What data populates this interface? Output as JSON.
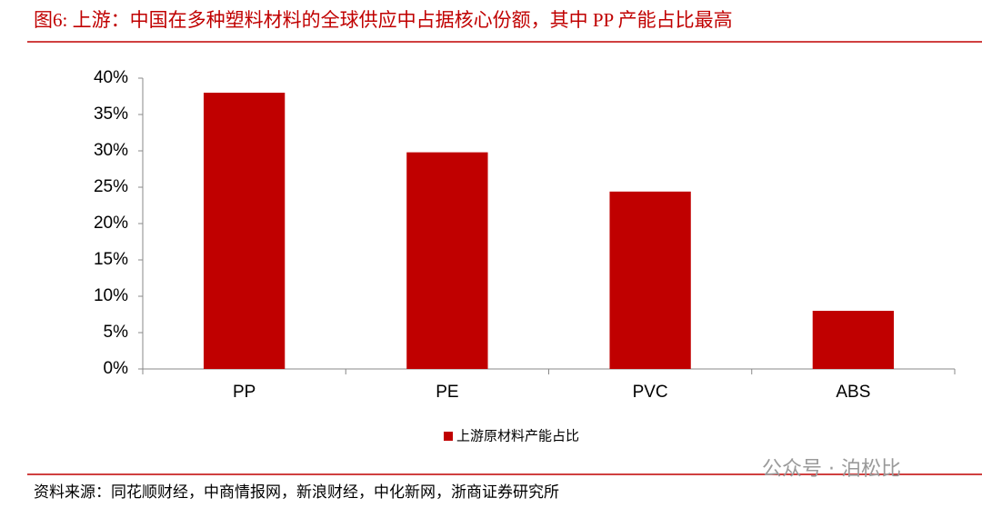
{
  "chart_data": {
    "type": "bar",
    "title": "图6:  上游：中国在多种塑料材料的全球供应中占据核心份额，其中 PP 产能占比最高",
    "categories": [
      "PP",
      "PE",
      "PVC",
      "ABS"
    ],
    "series": [
      {
        "name": "上游原材料产能占比",
        "color": "#c00000",
        "values": [
          38,
          29.8,
          24.4,
          8
        ]
      }
    ],
    "ylim": [
      0,
      40
    ],
    "yticks": [
      {
        "value": 0,
        "label": "0%"
      },
      {
        "value": 5,
        "label": "5%"
      },
      {
        "value": 10,
        "label": "10%"
      },
      {
        "value": 15,
        "label": "15%"
      },
      {
        "value": 20,
        "label": "20%"
      },
      {
        "value": 25,
        "label": "25%"
      },
      {
        "value": 30,
        "label": "30%"
      },
      {
        "value": 35,
        "label": "35%"
      },
      {
        "value": 40,
        "label": "40%"
      }
    ],
    "grid": false,
    "legend": "bottom",
    "source": "资料来源：同花顺财经，中商情报网，新浪财经，中化新网，浙商证券研究所",
    "watermark": "公众号 · 泊松比"
  }
}
